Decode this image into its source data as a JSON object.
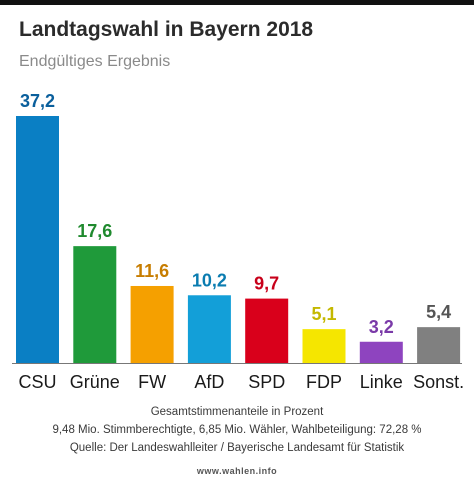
{
  "header": {
    "title": "Landtagswahl in Bayern 2018",
    "subtitle": "Endgültiges Ergebnis"
  },
  "footer": {
    "line1": "Gesamtstimmenanteile in Prozent",
    "line2": "9,48 Mio. Stimmberechtigte, 6,85 Mio. Wähler, Wahlbeteiligung: 72,28 %",
    "line3": "Quelle: Der Landeswahlleiter / Bayerische Landesamt für Statistik",
    "brand": "www.wahlen.info"
  },
  "chart_data": {
    "type": "bar",
    "title": "Landtagswahl in Bayern 2018",
    "subtitle": "Endgültiges Ergebnis",
    "categories": [
      "CSU",
      "Grüne",
      "FW",
      "AfD",
      "SPD",
      "FDP",
      "Linke",
      "Sonst."
    ],
    "values": [
      37.2,
      17.6,
      11.6,
      10.2,
      9.7,
      5.1,
      3.2,
      5.4
    ],
    "value_labels": [
      "37,2",
      "17,6",
      "11,6",
      "10,2",
      "9,7",
      "5,1",
      "3,2",
      "5,4"
    ],
    "colors": [
      "#0a7fc4",
      "#1f9a3a",
      "#f5a000",
      "#139fd8",
      "#d9001b",
      "#f5e600",
      "#8e44bf",
      "#808080"
    ],
    "label_colors": [
      "#0a5f9c",
      "#1f8a2e",
      "#c77d00",
      "#0a7cb0",
      "#c8001a",
      "#c4b800",
      "#7a3aa8",
      "#555555"
    ],
    "ylim": [
      0,
      37.2
    ],
    "grid": false,
    "legend": "none",
    "xlabel": "",
    "ylabel": ""
  }
}
